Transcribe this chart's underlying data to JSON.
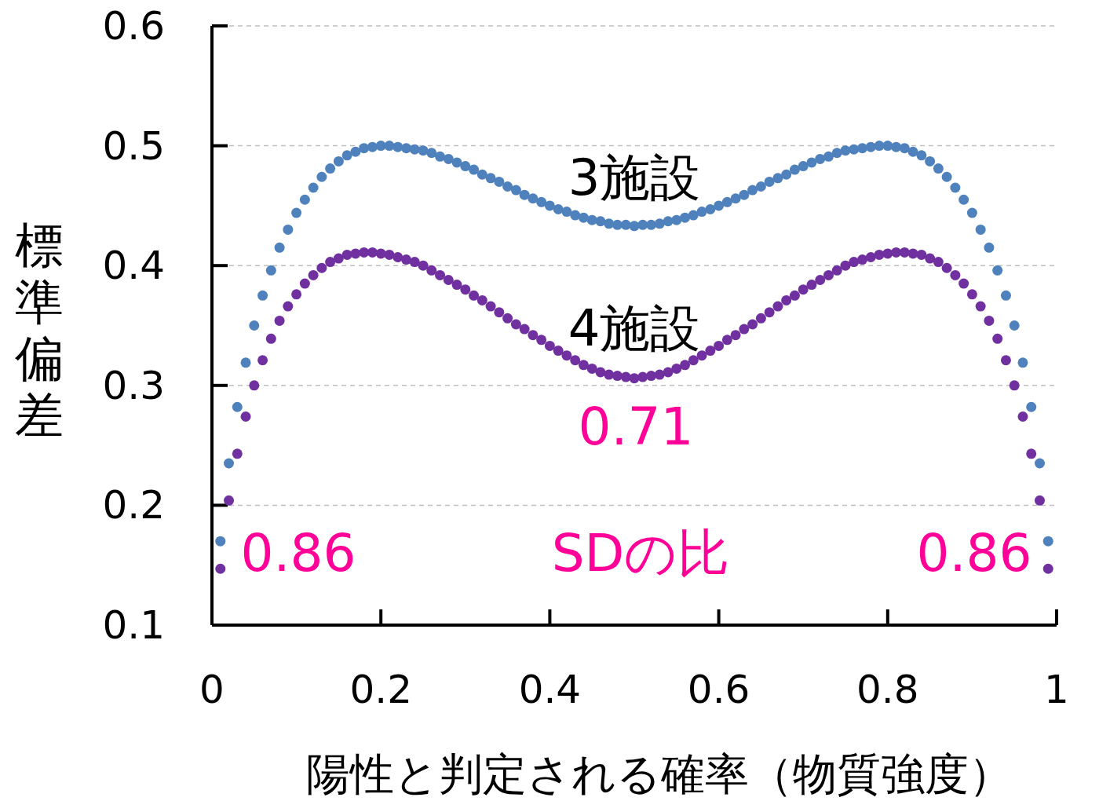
{
  "chart_data": {
    "type": "scatter",
    "xlabel": "陽性と判定される確率（物質強度）",
    "ylabel": "標準偏差",
    "x": [
      0.01,
      0.02,
      0.03,
      0.04,
      0.05,
      0.06,
      0.07,
      0.08,
      0.09,
      0.1,
      0.11,
      0.12,
      0.13,
      0.14,
      0.15,
      0.16,
      0.17,
      0.18,
      0.19,
      0.2,
      0.21,
      0.22,
      0.23,
      0.24,
      0.25,
      0.26,
      0.27,
      0.28,
      0.29,
      0.3,
      0.31,
      0.32,
      0.33,
      0.34,
      0.35,
      0.36,
      0.37,
      0.38,
      0.39,
      0.4,
      0.41,
      0.42,
      0.43,
      0.44,
      0.45,
      0.46,
      0.47,
      0.48,
      0.49,
      0.5,
      0.51,
      0.52,
      0.53,
      0.54,
      0.55,
      0.56,
      0.57,
      0.58,
      0.59,
      0.6,
      0.61,
      0.62,
      0.63,
      0.64,
      0.65,
      0.66,
      0.67,
      0.68,
      0.69,
      0.7,
      0.71,
      0.72,
      0.73,
      0.74,
      0.75,
      0.76,
      0.77,
      0.78,
      0.79,
      0.8,
      0.81,
      0.82,
      0.83,
      0.84,
      0.85,
      0.86,
      0.87,
      0.88,
      0.89,
      0.9,
      0.91,
      0.92,
      0.93,
      0.94,
      0.95,
      0.96,
      0.97,
      0.98,
      0.99
    ],
    "series": [
      {
        "name": "3施設",
        "color": "#4f81bd",
        "values": [
          0.17,
          0.235,
          0.282,
          0.319,
          0.35,
          0.375,
          0.396,
          0.415,
          0.43,
          0.444,
          0.455,
          0.465,
          0.474,
          0.481,
          0.487,
          0.492,
          0.495,
          0.498,
          0.499,
          0.5,
          0.5,
          0.499,
          0.498,
          0.497,
          0.496,
          0.494,
          0.491,
          0.489,
          0.486,
          0.483,
          0.48,
          0.476,
          0.473,
          0.47,
          0.466,
          0.463,
          0.459,
          0.456,
          0.453,
          0.45,
          0.447,
          0.445,
          0.442,
          0.44,
          0.438,
          0.437,
          0.435,
          0.434,
          0.434,
          0.433,
          0.434,
          0.434,
          0.435,
          0.437,
          0.438,
          0.44,
          0.442,
          0.445,
          0.447,
          0.45,
          0.453,
          0.456,
          0.459,
          0.463,
          0.466,
          0.47,
          0.473,
          0.476,
          0.48,
          0.483,
          0.486,
          0.489,
          0.491,
          0.494,
          0.496,
          0.497,
          0.498,
          0.499,
          0.5,
          0.5,
          0.499,
          0.498,
          0.495,
          0.492,
          0.487,
          0.481,
          0.474,
          0.465,
          0.455,
          0.444,
          0.43,
          0.415,
          0.396,
          0.375,
          0.35,
          0.319,
          0.282,
          0.235,
          0.17
        ]
      },
      {
        "name": "4施設",
        "color": "#7030a0",
        "values": [
          0.147,
          0.204,
          0.243,
          0.274,
          0.3,
          0.321,
          0.339,
          0.354,
          0.366,
          0.376,
          0.385,
          0.392,
          0.398,
          0.403,
          0.406,
          0.409,
          0.41,
          0.411,
          0.411,
          0.41,
          0.409,
          0.407,
          0.405,
          0.403,
          0.4,
          0.396,
          0.392,
          0.388,
          0.384,
          0.38,
          0.375,
          0.371,
          0.366,
          0.361,
          0.356,
          0.351,
          0.347,
          0.342,
          0.338,
          0.333,
          0.329,
          0.325,
          0.321,
          0.317,
          0.314,
          0.311,
          0.309,
          0.308,
          0.307,
          0.306,
          0.307,
          0.308,
          0.309,
          0.311,
          0.314,
          0.317,
          0.321,
          0.325,
          0.329,
          0.333,
          0.338,
          0.342,
          0.347,
          0.351,
          0.356,
          0.361,
          0.366,
          0.371,
          0.375,
          0.38,
          0.384,
          0.388,
          0.392,
          0.396,
          0.4,
          0.403,
          0.405,
          0.407,
          0.409,
          0.41,
          0.411,
          0.411,
          0.41,
          0.409,
          0.406,
          0.403,
          0.398,
          0.392,
          0.385,
          0.376,
          0.366,
          0.354,
          0.339,
          0.321,
          0.3,
          0.274,
          0.243,
          0.204,
          0.147
        ]
      }
    ],
    "xlim": [
      0,
      1
    ],
    "xticks": [
      0,
      0.2,
      0.4,
      0.6,
      0.8,
      1
    ],
    "ylim": [
      0.1,
      0.6
    ],
    "yticks": [
      0.1,
      0.2,
      0.3,
      0.4,
      0.5,
      0.6
    ],
    "grid": "y",
    "marker": "circle",
    "annotations": [
      "0.86",
      "0.71",
      "SDの比",
      "0.86"
    ]
  }
}
